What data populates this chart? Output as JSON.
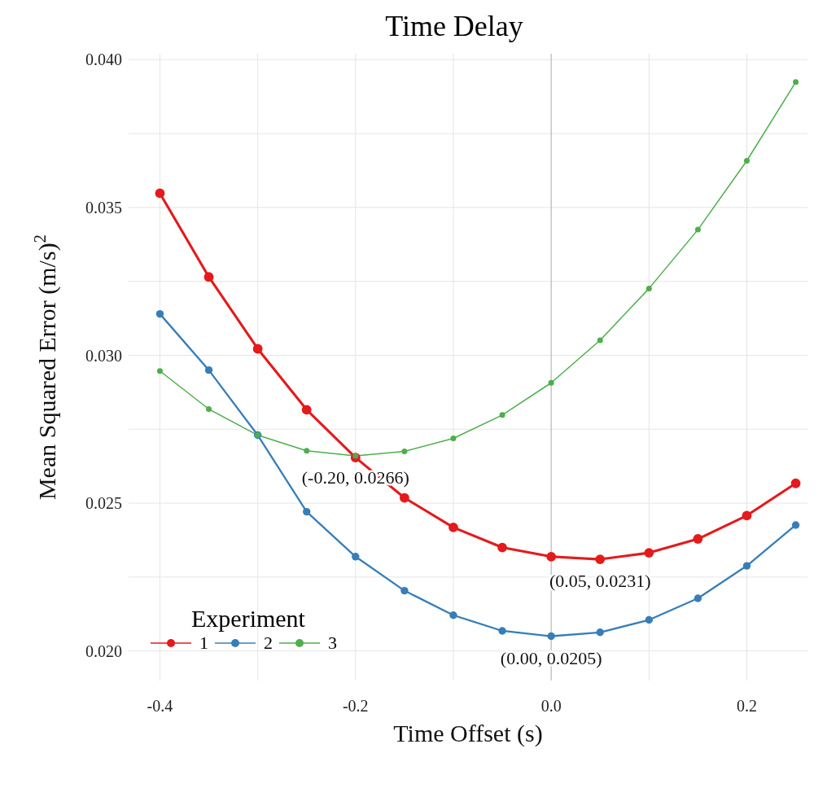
{
  "chart_data": {
    "type": "line",
    "title": "Time Delay",
    "xlabel": "Time Offset (s)",
    "ylabel": "Mean Squared Error (m/s)$^{2}$",
    "legend_title": "Experiment",
    "x": [
      -0.4,
      -0.35,
      -0.3,
      -0.25,
      -0.2,
      -0.15,
      -0.1,
      -0.05,
      0.0,
      0.05,
      0.1,
      0.15,
      0.2,
      0.25
    ],
    "series": [
      {
        "name": "1",
        "color": "#e41a1c",
        "values": [
          0.03548,
          0.03265,
          0.03022,
          0.02816,
          0.02654,
          0.02518,
          0.02418,
          0.0235,
          0.02319,
          0.0231,
          0.02332,
          0.02379,
          0.02458,
          0.02567
        ]
      },
      {
        "name": "2",
        "color": "#377eb8",
        "values": [
          0.0314,
          0.0295,
          0.0273,
          0.02471,
          0.02319,
          0.02204,
          0.02121,
          0.02068,
          0.0205,
          0.02063,
          0.02105,
          0.02178,
          0.02288,
          0.02426
        ]
      },
      {
        "name": "3",
        "color": "#4daf4a",
        "values": [
          0.02947,
          0.02818,
          0.0273,
          0.02677,
          0.0266,
          0.02675,
          0.02719,
          0.02798,
          0.02907,
          0.03051,
          0.03226,
          0.03425,
          0.03658,
          0.03924
        ]
      }
    ],
    "xlim": [
      -0.432,
      0.262
    ],
    "ylim": [
      0.019,
      0.0402
    ],
    "xticks": [
      {
        "value": -0.4,
        "label": "-0.4"
      },
      {
        "value": -0.3,
        "label": null
      },
      {
        "value": -0.2,
        "label": "-0.2"
      },
      {
        "value": -0.1,
        "label": null
      },
      {
        "value": 0,
        "label": "0.0"
      },
      {
        "value": 0.1,
        "label": null
      },
      {
        "value": 0.2,
        "label": "0.2"
      }
    ],
    "yticks": [
      {
        "value": 0.02,
        "label": "0.020"
      },
      {
        "value": 0.0225,
        "label": null
      },
      {
        "value": 0.025,
        "label": "0.025"
      },
      {
        "value": 0.0275,
        "label": null
      },
      {
        "value": 0.03,
        "label": "0.030"
      },
      {
        "value": 0.0325,
        "label": null
      },
      {
        "value": 0.035,
        "label": "0.035"
      },
      {
        "value": 0.0375,
        "label": null
      },
      {
        "value": 0.04,
        "label": "0.040"
      }
    ],
    "ref_lines": [
      {
        "axis": "x",
        "value": 0,
        "color": "#b3b3b3"
      }
    ],
    "annotations": [
      {
        "text": "(-0.20, 0.0266)",
        "x": -0.2,
        "y": 0.0266
      },
      {
        "text": "(0.05, 0.0231)",
        "x": 0.05,
        "y": 0.0231
      },
      {
        "text": "(0.00, 0.0205)",
        "x": 0.0,
        "y": 0.0205
      }
    ],
    "grid": true,
    "legend": "bottom left",
    "marker": "circle",
    "line_style": "solid"
  }
}
